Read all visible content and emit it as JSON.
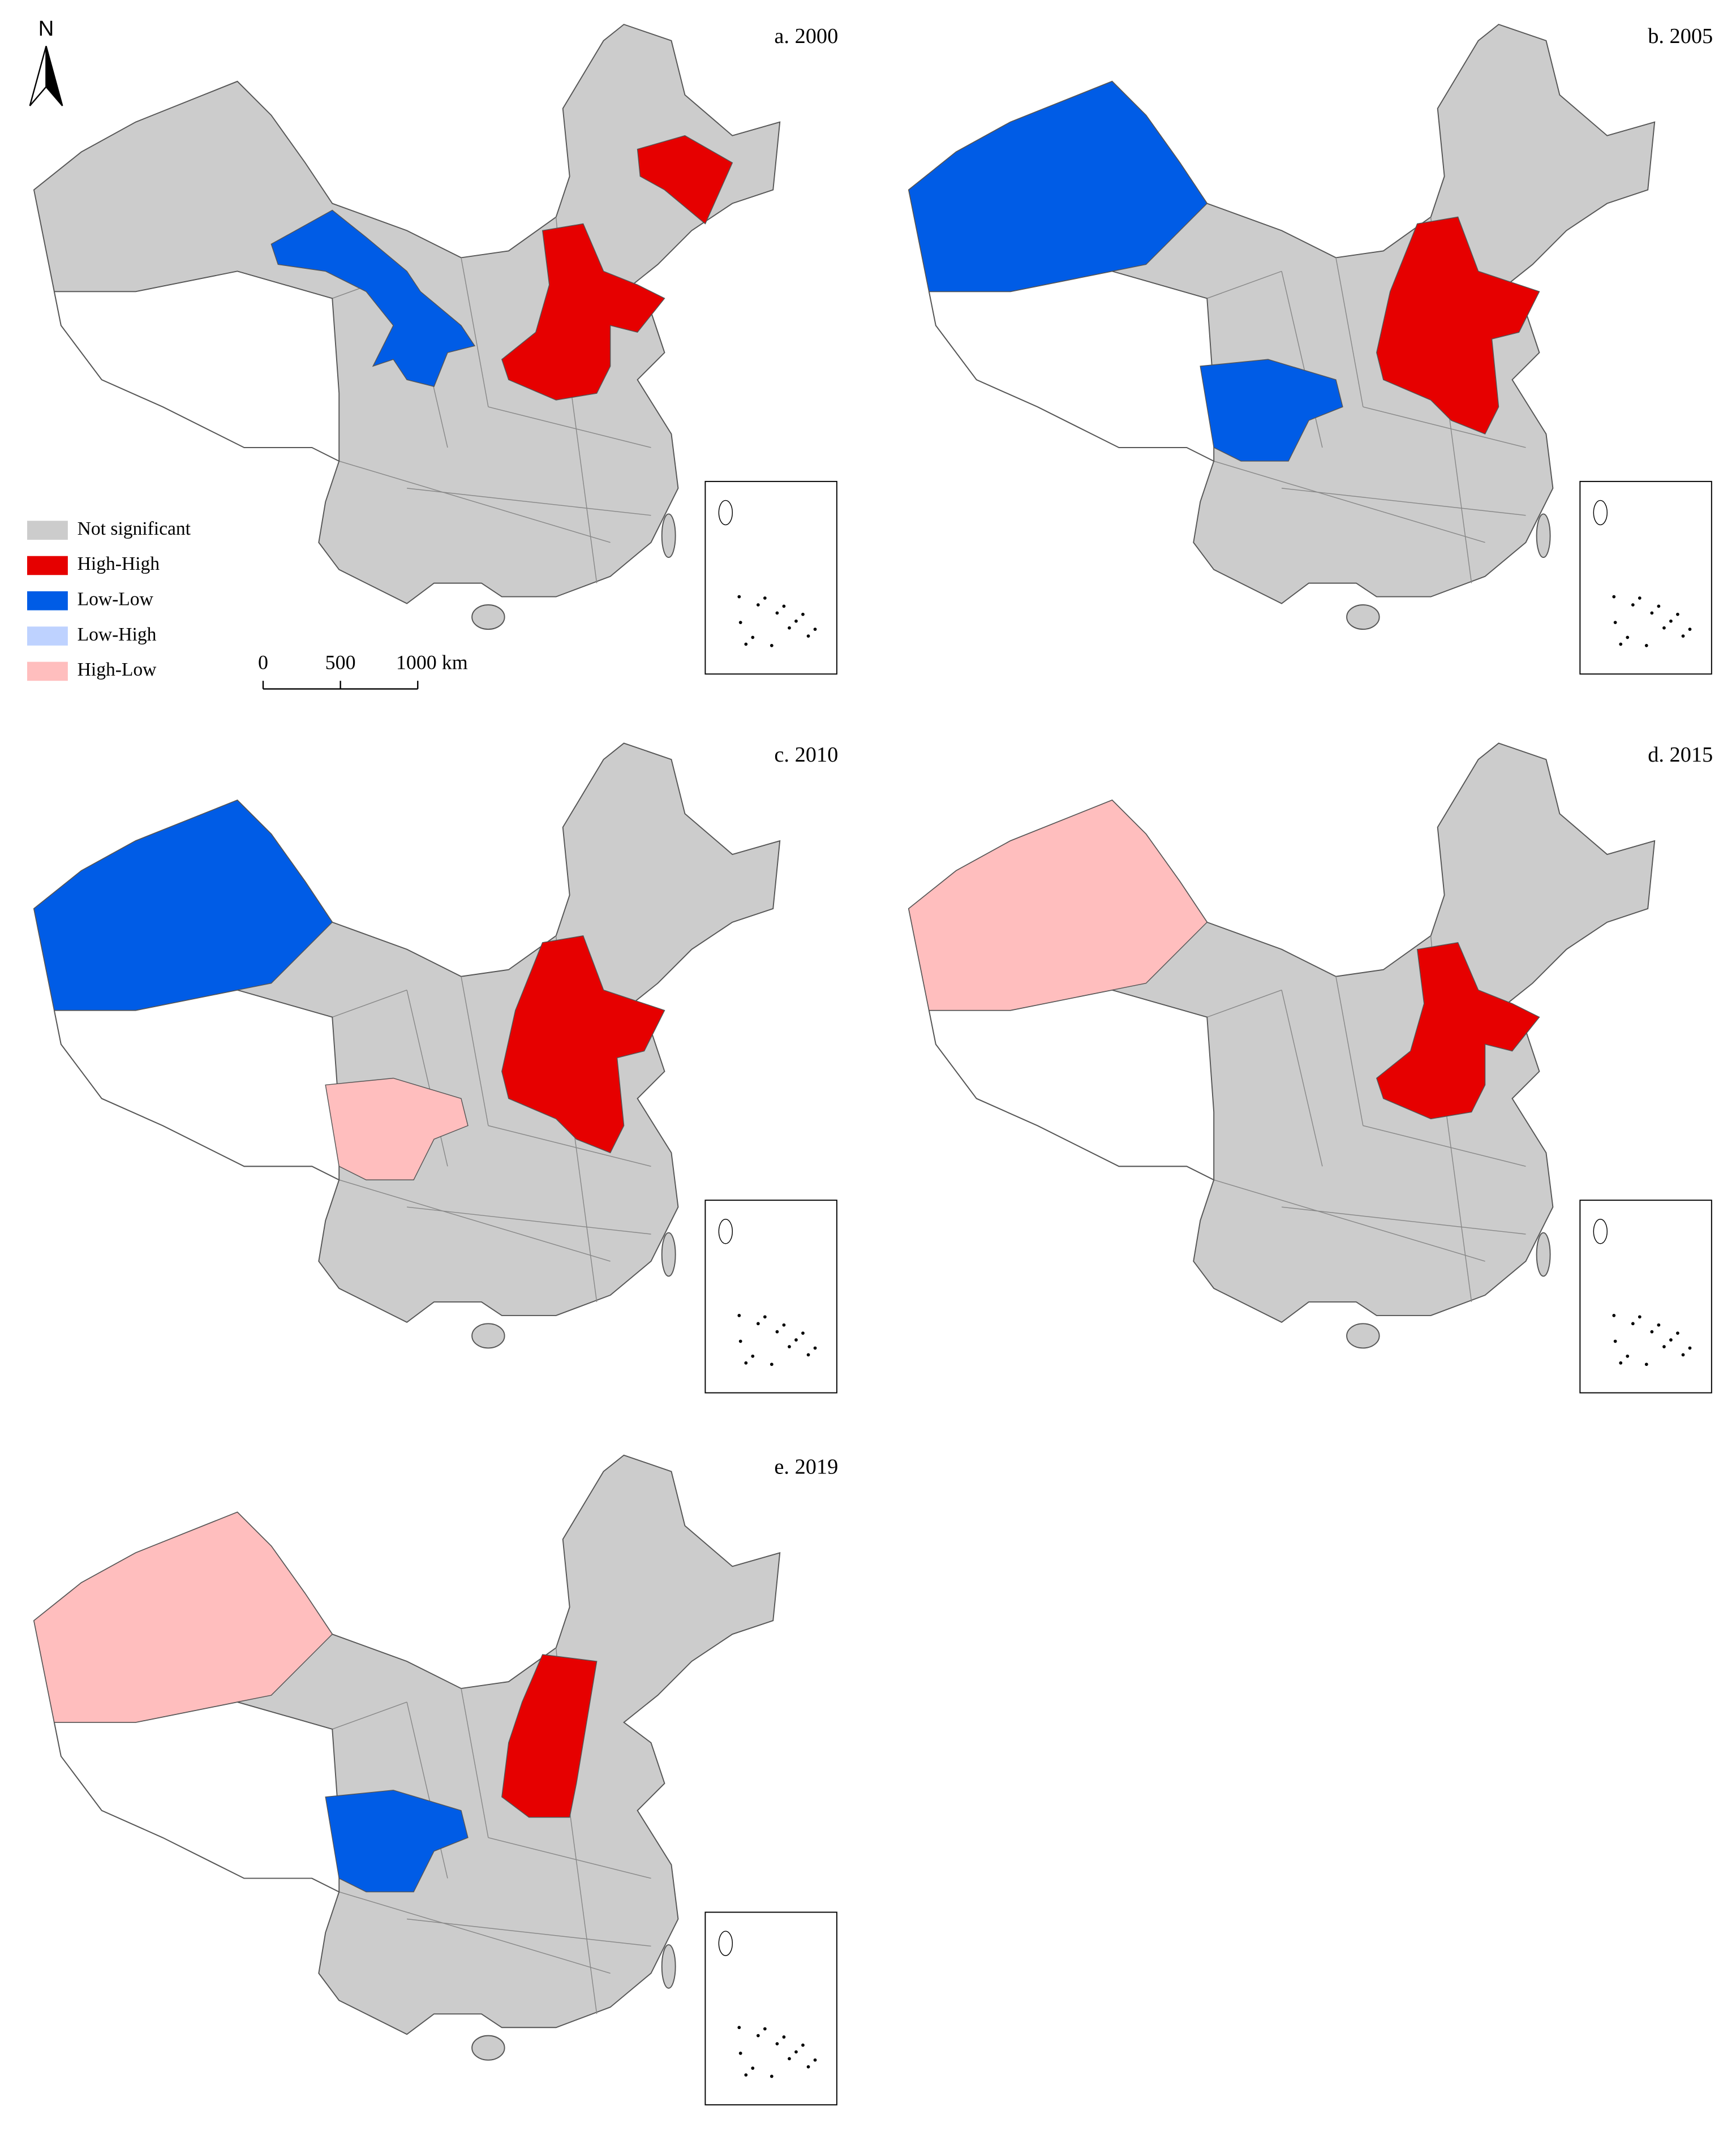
{
  "north_arrow": "N",
  "panels": [
    {
      "label": "a. 2000"
    },
    {
      "label": "b. 2005"
    },
    {
      "label": "c. 2010"
    },
    {
      "label": "d. 2015"
    },
    {
      "label": "e. 2019"
    }
  ],
  "legend": [
    {
      "label": "Not significant",
      "color": "#cccccc"
    },
    {
      "label": "High-High",
      "color": "#e60000"
    },
    {
      "label": "Low-Low",
      "color": "#005ce6"
    },
    {
      "label": "Low-High",
      "color": "#bed2ff"
    },
    {
      "label": "High-Low",
      "color": "#ffbebe"
    }
  ],
  "scale_bar": {
    "labels": [
      "0",
      "500",
      "1000 km"
    ]
  }
}
